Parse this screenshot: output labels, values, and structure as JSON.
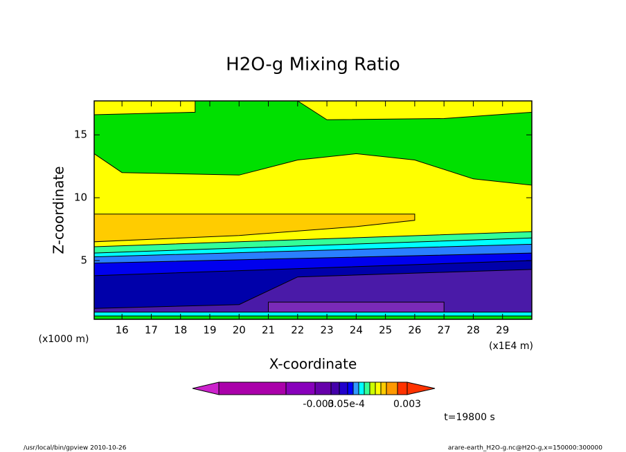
{
  "chart_data": {
    "type": "contour",
    "title": "H2O-g Mixing Ratio",
    "x_label": "X-coordinate",
    "y_label": "Z-coordinate",
    "x_unit_label": "(x1E4 m)",
    "y_unit_label": "(x1000 m)",
    "xlim": [
      15.05,
      30
    ],
    "ylim": [
      0.33,
      17.7
    ],
    "xticks": [
      16,
      17,
      18,
      19,
      20,
      21,
      22,
      23,
      24,
      25,
      26,
      27,
      28,
      29
    ],
    "yticks": [
      5,
      10,
      15
    ],
    "regions": [
      {
        "color": "#00e000",
        "x": [
          15.05,
          30,
          30,
          15.05
        ],
        "z": [
          0.33,
          0.33,
          17.7,
          17.7
        ]
      },
      {
        "color": "#ffff00",
        "x": [
          15.05,
          16,
          20,
          22,
          24,
          26,
          28,
          30,
          30,
          15.05
        ],
        "z": [
          13.5,
          12,
          11.8,
          13,
          13.5,
          13,
          11.5,
          11,
          0.33,
          0.33
        ]
      },
      {
        "color": "#ffff00",
        "x": [
          15.05,
          18.5,
          18.5,
          15.05
        ],
        "z": [
          17.7,
          17.7,
          16.8,
          16.6
        ]
      },
      {
        "color": "#ffff00",
        "x": [
          22,
          23,
          27,
          30,
          30
        ],
        "z": [
          17.7,
          16.2,
          16.3,
          16.8,
          17.7
        ]
      },
      {
        "color": "#ffcc00",
        "x": [
          15.05,
          26,
          26,
          24,
          20,
          15.05
        ],
        "z": [
          8.7,
          8.7,
          8.2,
          7.7,
          7,
          6.5
        ]
      },
      {
        "color": "#33ff99",
        "x": [
          15.05,
          30,
          30,
          15.05
        ],
        "z": [
          6.1,
          7.3,
          0.33,
          0.33
        ]
      },
      {
        "color": "#00ffff",
        "x": [
          15.05,
          30,
          30,
          15.05
        ],
        "z": [
          5.6,
          6.8,
          0.33,
          0.33
        ]
      },
      {
        "color": "#2a7fff",
        "x": [
          15.05,
          30,
          30,
          15.05
        ],
        "z": [
          5.3,
          6.3,
          0.33,
          0.33
        ]
      },
      {
        "color": "#0000ee",
        "x": [
          15.05,
          30,
          30,
          15.05
        ],
        "z": [
          4.8,
          5.6,
          0.33,
          0.33
        ]
      },
      {
        "color": "#0000aa",
        "x": [
          15.05,
          30,
          30,
          15.05
        ],
        "z": [
          3.8,
          5,
          0.33,
          0.33
        ]
      },
      {
        "color": "#4a1aa8",
        "x": [
          15.05,
          20,
          22,
          30,
          30,
          15.05
        ],
        "z": [
          1.2,
          1.5,
          3.7,
          4.3,
          0.33,
          0.33
        ]
      },
      {
        "color": "#7a2ab8",
        "x": [
          21,
          27,
          27,
          21
        ],
        "z": [
          1.7,
          1.7,
          0.9,
          0.9
        ]
      },
      {
        "color": "#00ffff",
        "x": [
          15.05,
          30,
          30,
          15.05
        ],
        "z": [
          0.9,
          0.9,
          0.33,
          0.33
        ]
      },
      {
        "color": "#00e000",
        "x": [
          15.05,
          30,
          30,
          15.05
        ],
        "z": [
          0.6,
          0.6,
          0.33,
          0.33
        ]
      }
    ],
    "colorbar": {
      "colors": [
        "#cc22cc",
        "#aa00aa",
        "#8800bb",
        "#6600aa",
        "#4400aa",
        "#2200cc",
        "#0000ff",
        "#3399ff",
        "#00ffff",
        "#33ff99",
        "#ccff00",
        "#ffff00",
        "#ffcc00",
        "#ff9900",
        "#ff3300"
      ],
      "labels": [
        "-0.003",
        "0.05e-4",
        "0.003"
      ]
    },
    "time_label": "t=19800 s",
    "footer_left": "/usr/local/bin/gpview  2010-10-26",
    "footer_right": "arare-earth_H2O-g.nc@H2O-g,x=150000:300000"
  }
}
